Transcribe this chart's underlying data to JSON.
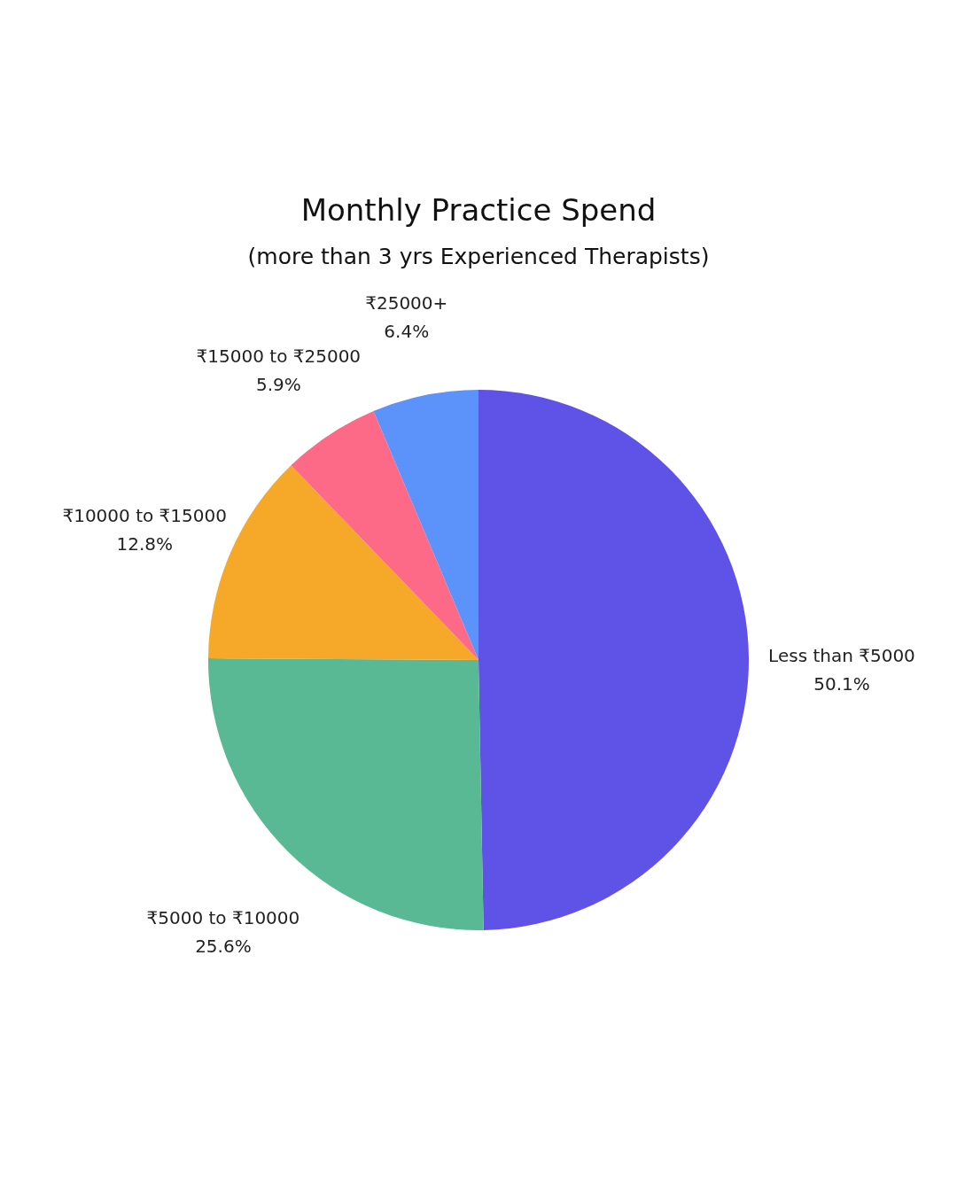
{
  "chart_data": {
    "type": "pie",
    "title": "Monthly Practice Spend",
    "subtitle": "(more than 3 yrs Experienced Therapists)",
    "categories": [
      "Less than ₹5000",
      "₹5000 to ₹10000",
      "₹10000 to ₹15000",
      "₹15000 to ₹25000",
      "₹25000+"
    ],
    "values": [
      50.1,
      25.6,
      12.8,
      5.9,
      6.4
    ],
    "value_labels": [
      "50.1%",
      "25.6%",
      "12.8%",
      "5.9%",
      "6.4%"
    ],
    "colors": [
      "#5f52e6",
      "#58b994",
      "#f6a828",
      "#fd6a87",
      "#5b93fb"
    ],
    "legend": false
  }
}
